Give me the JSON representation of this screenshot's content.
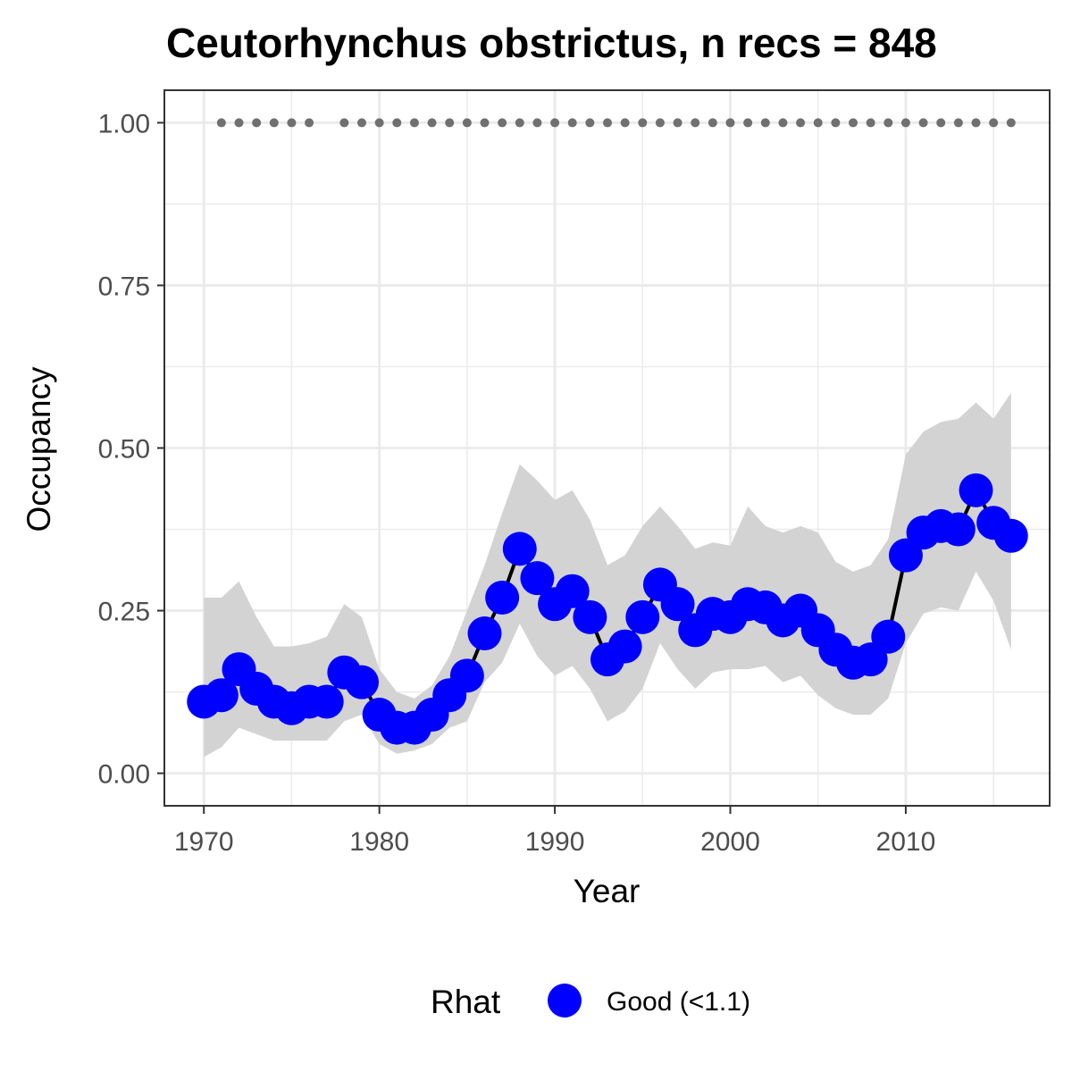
{
  "chart_data": {
    "type": "line",
    "title": "Ceutorhynchus obstrictus, n recs = 848",
    "xlabel": "Year",
    "ylabel": "Occupancy",
    "xlim": [
      1967.8,
      2018.2
    ],
    "ylim": [
      -0.05,
      1.05
    ],
    "x_ticks": [
      1970,
      1980,
      1990,
      2000,
      2010
    ],
    "x_tick_labels": [
      "1970",
      "1980",
      "1990",
      "2000",
      "2010"
    ],
    "y_ticks": [
      0,
      0.25,
      0.5,
      0.75,
      1
    ],
    "y_tick_labels": [
      "0.00",
      "0.25",
      "0.50",
      "0.75",
      "1.00"
    ],
    "grid": true,
    "legend_position": "bottom",
    "legend": {
      "title": "Rhat",
      "items": [
        {
          "label": "Good (<1.1)",
          "color": "#0000ff"
        }
      ]
    },
    "colors": {
      "points": "#0000ff",
      "line": "#000000",
      "ribbon": "#d3d3d3",
      "record_dots": "#707070",
      "grid": "#ebebeb",
      "panel_border": "#333333"
    },
    "series": [
      {
        "x": [
          1970,
          1971,
          1972,
          1973,
          1974,
          1975,
          1976,
          1977,
          1978,
          1979,
          1980,
          1981,
          1982,
          1983,
          1984,
          1985,
          1986,
          1987,
          1988,
          1989,
          1990,
          1991,
          1992,
          1993,
          1994,
          1995,
          1996,
          1997,
          1998,
          1999,
          2000,
          2001,
          2002,
          2003,
          2004,
          2005,
          2006,
          2007,
          2008,
          2009,
          2010,
          2011,
          2012,
          2013,
          2014,
          2015,
          2016
        ],
        "y": [
          0.11,
          0.12,
          0.16,
          0.13,
          0.11,
          0.1,
          0.11,
          0.11,
          0.155,
          0.14,
          0.09,
          0.07,
          0.07,
          0.09,
          0.12,
          0.15,
          0.215,
          0.27,
          0.345,
          0.3,
          0.26,
          0.28,
          0.24,
          0.175,
          0.195,
          0.24,
          0.29,
          0.26,
          0.22,
          0.245,
          0.24,
          0.26,
          0.255,
          0.235,
          0.25,
          0.22,
          0.19,
          0.17,
          0.175,
          0.21,
          0.335,
          0.37,
          0.38,
          0.375,
          0.435,
          0.385,
          0.365
        ],
        "lower": [
          0.025,
          0.04,
          0.07,
          0.06,
          0.05,
          0.05,
          0.05,
          0.05,
          0.08,
          0.09,
          0.045,
          0.03,
          0.035,
          0.045,
          0.07,
          0.08,
          0.14,
          0.17,
          0.23,
          0.18,
          0.15,
          0.165,
          0.13,
          0.08,
          0.095,
          0.13,
          0.2,
          0.16,
          0.13,
          0.155,
          0.16,
          0.16,
          0.165,
          0.14,
          0.15,
          0.12,
          0.1,
          0.09,
          0.09,
          0.115,
          0.2,
          0.245,
          0.255,
          0.25,
          0.31,
          0.265,
          0.19
        ],
        "upper": [
          0.27,
          0.27,
          0.295,
          0.24,
          0.195,
          0.195,
          0.2,
          0.21,
          0.26,
          0.24,
          0.16,
          0.125,
          0.115,
          0.135,
          0.18,
          0.25,
          0.32,
          0.4,
          0.475,
          0.45,
          0.42,
          0.435,
          0.39,
          0.32,
          0.335,
          0.38,
          0.41,
          0.38,
          0.345,
          0.355,
          0.35,
          0.41,
          0.38,
          0.37,
          0.38,
          0.37,
          0.325,
          0.31,
          0.32,
          0.36,
          0.49,
          0.525,
          0.54,
          0.545,
          0.57,
          0.545,
          0.585
        ]
      }
    ],
    "record_years": [
      1971,
      1972,
      1973,
      1974,
      1975,
      1976,
      1978,
      1979,
      1980,
      1981,
      1982,
      1983,
      1984,
      1985,
      1986,
      1987,
      1988,
      1989,
      1990,
      1991,
      1992,
      1993,
      1994,
      1995,
      1996,
      1997,
      1998,
      1999,
      2000,
      2001,
      2002,
      2003,
      2004,
      2005,
      2006,
      2007,
      2008,
      2009,
      2010,
      2011,
      2012,
      2013,
      2014,
      2015,
      2016
    ],
    "record_y": 1.0
  }
}
